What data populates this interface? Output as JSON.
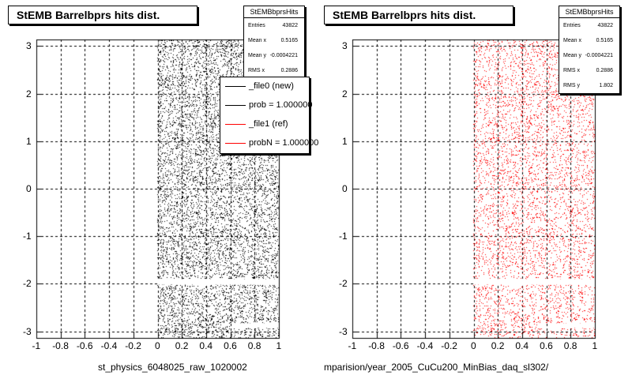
{
  "footer_stamp": "",
  "panels": [
    {
      "title": "StEMB Barrelbprs hits dist.",
      "file_label": "st_physics_6048025_raw_1020002",
      "stats": {
        "name": "StEMBbprsHits",
        "rows": [
          {
            "key": "Entries",
            "value": "43822"
          },
          {
            "key": "Mean x",
            "value": "0.5165"
          },
          {
            "key": "Mean y",
            "value": "-0.0004221"
          },
          {
            "key": "RMS x",
            "value": "0.2886"
          }
        ]
      },
      "legend": [
        {
          "label": "_file0 (new)",
          "color": "#000000"
        },
        {
          "label": "prob = 1.000000",
          "color": "#000000"
        },
        {
          "label": "_file1 (ref)",
          "color": "#ff0000"
        },
        {
          "label": "probN = 1.000000",
          "color": "#ff0000"
        }
      ]
    },
    {
      "title": "StEMB Barrelbprs hits dist.",
      "file_label": "mparision/year_2005_CuCu200_MinBias_daq_sl302/",
      "stats": {
        "name": "StEMBbprsHits",
        "rows": [
          {
            "key": "Entries",
            "value": "43822"
          },
          {
            "key": "Mean x",
            "value": "0.5165"
          },
          {
            "key": "Mean y",
            "value": "-0.0004221"
          },
          {
            "key": "RMS x",
            "value": "0.2886"
          },
          {
            "key": "RMS y",
            "value": "1.802"
          }
        ]
      }
    }
  ],
  "chart_data": [
    {
      "type": "scatter",
      "title": "StEMB Barrelbprs hits dist.",
      "xlabel": "",
      "ylabel": "",
      "xlim": [
        -1,
        1
      ],
      "ylim": [
        -3.14,
        3.14
      ],
      "x_ticks": [
        -1,
        -0.8,
        -0.6,
        -0.4,
        -0.2,
        0,
        0.2,
        0.4,
        0.6,
        0.8,
        1
      ],
      "y_ticks": [
        -3,
        -2,
        -1,
        0,
        1,
        2,
        3
      ],
      "grid": true,
      "series": [
        {
          "name": "_file0 (new)",
          "color": "#000000",
          "fill_region": {
            "x": [
              0,
              1
            ],
            "y": [
              -3.14,
              3.14
            ]
          },
          "entries": 43822,
          "gaps": [
            {
              "y": [
                -2.02,
                -1.9
              ],
              "x": [
                0,
                1
              ]
            },
            {
              "y": [
                -2.93,
                -2.83
              ],
              "x": [
                0.62,
                1
              ]
            }
          ]
        }
      ],
      "grid_on": true,
      "legend_position": "top-right"
    },
    {
      "type": "scatter",
      "title": "StEMB Barrelbprs hits dist.",
      "xlabel": "",
      "ylabel": "",
      "xlim": [
        -1,
        1
      ],
      "ylim": [
        -3.14,
        3.14
      ],
      "x_ticks": [
        -1,
        -0.8,
        -0.6,
        -0.4,
        -0.2,
        0,
        0.2,
        0.4,
        0.6,
        0.8,
        1
      ],
      "y_ticks": [
        -3,
        -2,
        -1,
        0,
        1,
        2,
        3
      ],
      "grid": true,
      "series": [
        {
          "name": "_file1 (ref)",
          "color": "#ff0000",
          "fill_region": {
            "x": [
              0,
              1
            ],
            "y": [
              -3.14,
              3.14
            ]
          },
          "entries": 43822,
          "gaps": [
            {
              "y": [
                -2.02,
                -1.9
              ],
              "x": [
                0,
                1
              ]
            },
            {
              "y": [
                -2.93,
                -2.83
              ],
              "x": [
                0.62,
                1
              ]
            }
          ]
        }
      ]
    }
  ]
}
